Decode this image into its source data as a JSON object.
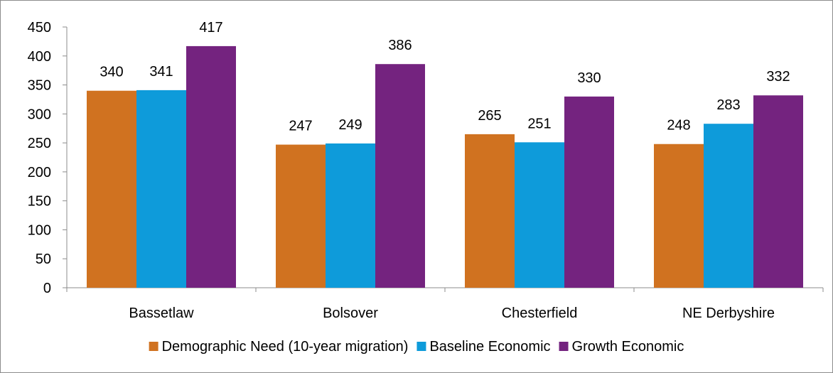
{
  "chart_data": {
    "type": "bar",
    "title": "",
    "xlabel": "",
    "ylabel": "",
    "categories": [
      "Bassetlaw",
      "Bolsover",
      "Chesterfield",
      "NE Derbyshire"
    ],
    "series": [
      {
        "name": "Demographic Need (10-year migration)",
        "color": "#D07220",
        "values": [
          340,
          247,
          265,
          248
        ]
      },
      {
        "name": "Baseline Economic",
        "color": "#0E9BDA",
        "values": [
          341,
          249,
          251,
          283
        ]
      },
      {
        "name": "Growth Economic",
        "color": "#74237F",
        "values": [
          417,
          386,
          330,
          332
        ]
      }
    ],
    "ylim": [
      0,
      450
    ],
    "yticks": [
      0,
      50,
      100,
      150,
      200,
      250,
      300,
      350,
      400,
      450
    ],
    "grid": false,
    "data_labels": true,
    "legend_position": "bottom"
  }
}
